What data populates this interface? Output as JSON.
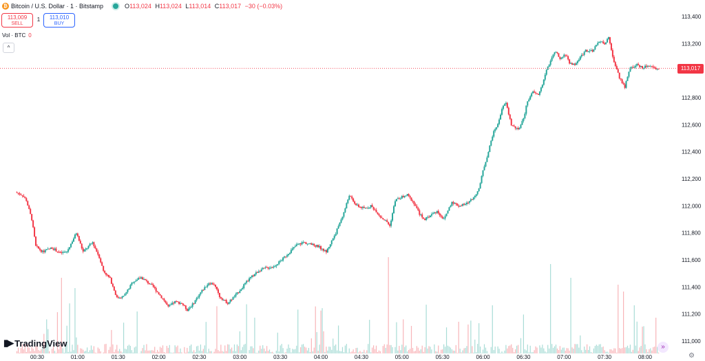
{
  "legend": {
    "symbol": "Bitcoin / U.S. Dollar · 1 · Bitstamp",
    "icon_glyph": "₿",
    "open_label": "O",
    "open": "113,024",
    "high_label": "H",
    "high": "113,024",
    "low_label": "L",
    "low": "113,014",
    "close_label": "C",
    "close": "113,017",
    "change": "−30 (−0.03%)"
  },
  "trade": {
    "sell_price": "113,009",
    "sell_label": "SELL",
    "spread": "1",
    "buy_price": "113,010",
    "buy_label": "BUY"
  },
  "volume_legend": {
    "label": "Vol · BTC",
    "value": "0"
  },
  "collapse_glyph": "^",
  "last_price_label": "113,017",
  "branding": {
    "logo_mark": "▮▶",
    "logo_text": "TradingView"
  },
  "goto_glyph": "»",
  "settings_glyph": "⚙",
  "colors": {
    "up": "#26a69a",
    "down": "#f23645",
    "up_volume": "#a8dcd6",
    "down_volume": "#f8b4b8"
  },
  "chart_data": {
    "type": "candlestick",
    "symbol": "Bitcoin / U.S. Dollar",
    "interval": "1",
    "exchange": "Bitstamp",
    "y_axis_ticks": [
      "113,400",
      "113,200",
      "113,000",
      "112,800",
      "112,600",
      "112,400",
      "112,200",
      "112,000",
      "111,800",
      "111,600",
      "111,400",
      "111,200",
      "111,000"
    ],
    "y_axis_values": [
      113400,
      113200,
      113000,
      112800,
      112600,
      112400,
      112200,
      112000,
      111800,
      111600,
      111400,
      111200,
      111000
    ],
    "ylim": [
      110960,
      113460
    ],
    "x_axis_ticks": [
      "00:30",
      "01:00",
      "01:30",
      "02:00",
      "02:30",
      "03:00",
      "03:30",
      "04:00",
      "04:30",
      "05:00",
      "05:30",
      "06:00",
      "06:30",
      "07:00",
      "07:30",
      "08:00"
    ],
    "last_price": 113017,
    "grid": false,
    "price_path": [
      [
        "00:15",
        112100
      ],
      [
        "00:20",
        112080
      ],
      [
        "00:23",
        112040
      ],
      [
        "00:27",
        111900
      ],
      [
        "00:30",
        111700
      ],
      [
        "00:35",
        111660
      ],
      [
        "00:42",
        111690
      ],
      [
        "00:48",
        111650
      ],
      [
        "00:53",
        111660
      ],
      [
        "00:58",
        111760
      ],
      [
        "01:00",
        111800
      ],
      [
        "01:05",
        111660
      ],
      [
        "01:12",
        111730
      ],
      [
        "01:17",
        111620
      ],
      [
        "01:20",
        111520
      ],
      [
        "01:25",
        111460
      ],
      [
        "01:30",
        111320
      ],
      [
        "01:35",
        111330
      ],
      [
        "01:42",
        111440
      ],
      [
        "01:48",
        111470
      ],
      [
        "01:52",
        111440
      ],
      [
        "01:57",
        111400
      ],
      [
        "02:05",
        111300
      ],
      [
        "02:08",
        111250
      ],
      [
        "02:13",
        111290
      ],
      [
        "02:18",
        111280
      ],
      [
        "02:22",
        111230
      ],
      [
        "02:26",
        111270
      ],
      [
        "02:32",
        111360
      ],
      [
        "02:38",
        111430
      ],
      [
        "02:42",
        111420
      ],
      [
        "02:46",
        111330
      ],
      [
        "02:52",
        111280
      ],
      [
        "02:58",
        111340
      ],
      [
        "03:03",
        111400
      ],
      [
        "03:08",
        111460
      ],
      [
        "03:15",
        111520
      ],
      [
        "03:20",
        111540
      ],
      [
        "03:26",
        111550
      ],
      [
        "03:32",
        111600
      ],
      [
        "03:38",
        111660
      ],
      [
        "03:43",
        111710
      ],
      [
        "03:48",
        111730
      ],
      [
        "03:55",
        111710
      ],
      [
        "03:59",
        111700
      ],
      [
        "04:05",
        111660
      ],
      [
        "04:12",
        111800
      ],
      [
        "04:18",
        111950
      ],
      [
        "04:22",
        112080
      ],
      [
        "04:25",
        112030
      ],
      [
        "04:28",
        112000
      ],
      [
        "04:33",
        111980
      ],
      [
        "04:38",
        112000
      ],
      [
        "04:42",
        111960
      ],
      [
        "04:45",
        111920
      ],
      [
        "04:50",
        111880
      ],
      [
        "04:52",
        111850
      ],
      [
        "04:56",
        112040
      ],
      [
        "05:00",
        112060
      ],
      [
        "05:05",
        112080
      ],
      [
        "05:10",
        112020
      ],
      [
        "05:14",
        111940
      ],
      [
        "05:18",
        111900
      ],
      [
        "05:22",
        111930
      ],
      [
        "05:27",
        111960
      ],
      [
        "05:32",
        111900
      ],
      [
        "05:38",
        112030
      ],
      [
        "05:43",
        112000
      ],
      [
        "05:48",
        112010
      ],
      [
        "05:53",
        112050
      ],
      [
        "05:58",
        112120
      ],
      [
        "06:01",
        112260
      ],
      [
        "06:05",
        112400
      ],
      [
        "06:08",
        112520
      ],
      [
        "06:10",
        112570
      ],
      [
        "06:12",
        112600
      ],
      [
        "06:15",
        112720
      ],
      [
        "06:18",
        112760
      ],
      [
        "06:22",
        112600
      ],
      [
        "06:27",
        112560
      ],
      [
        "06:31",
        112640
      ],
      [
        "06:34",
        112780
      ],
      [
        "06:38",
        112840
      ],
      [
        "06:42",
        112820
      ],
      [
        "06:45",
        112900
      ],
      [
        "06:48",
        113000
      ],
      [
        "06:52",
        113100
      ],
      [
        "06:55",
        113140
      ],
      [
        "06:58",
        113080
      ],
      [
        "07:02",
        113120
      ],
      [
        "07:05",
        113060
      ],
      [
        "07:09",
        113040
      ],
      [
        "07:13",
        113100
      ],
      [
        "07:17",
        113150
      ],
      [
        "07:22",
        113140
      ],
      [
        "07:27",
        113220
      ],
      [
        "07:31",
        113200
      ],
      [
        "07:34",
        113240
      ],
      [
        "07:37",
        113100
      ],
      [
        "07:42",
        112950
      ],
      [
        "07:46",
        112880
      ],
      [
        "07:50",
        113020
      ],
      [
        "07:55",
        113040
      ],
      [
        "08:00",
        113020
      ],
      [
        "08:03",
        113040
      ],
      [
        "08:07",
        113020
      ],
      [
        "08:10",
        113017
      ]
    ],
    "volume_note": "volume histogram along the bottom, mostly near zero with spikes around 00:45–01:00, 04:50 and 07:40"
  }
}
